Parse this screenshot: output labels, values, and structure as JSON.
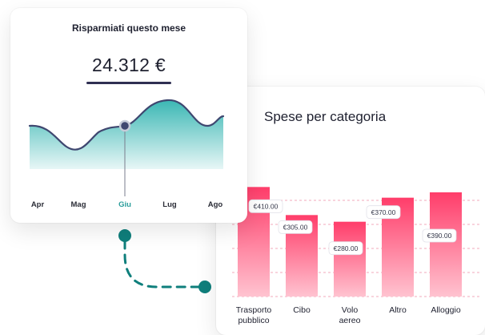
{
  "chart_data": [
    {
      "type": "area",
      "title": "Risparmiati questo mese",
      "value": "24.312 €",
      "categories": [
        "Apr",
        "Mag",
        "Giu",
        "Lug",
        "Ago"
      ],
      "highlighted": "Giu",
      "colors": {
        "fill": "#3bb7b4",
        "line": "#3f4770",
        "highlight_label": "#2a9d9b"
      }
    },
    {
      "type": "bar",
      "title": "Spese per categoria",
      "categories": [
        "Trasporto pubblico",
        "Cibo",
        "Volo aereo",
        "Altro",
        "Alloggio"
      ],
      "category_lines": [
        [
          "Trasporto",
          "pubblico"
        ],
        [
          "Cibo"
        ],
        [
          "Volo",
          "aereo"
        ],
        [
          "Altro"
        ],
        [
          "Alloggio"
        ]
      ],
      "values": [
        410,
        305,
        280,
        370,
        390
      ],
      "data_labels": [
        "€410.00",
        "€305.00",
        "€280.00",
        "€370.00",
        "€390.00"
      ],
      "ylim": [
        0,
        450
      ],
      "grid": true,
      "colors": {
        "bar_top": "#ff3d6a",
        "bar_bottom": "#ffc3d0"
      }
    }
  ]
}
